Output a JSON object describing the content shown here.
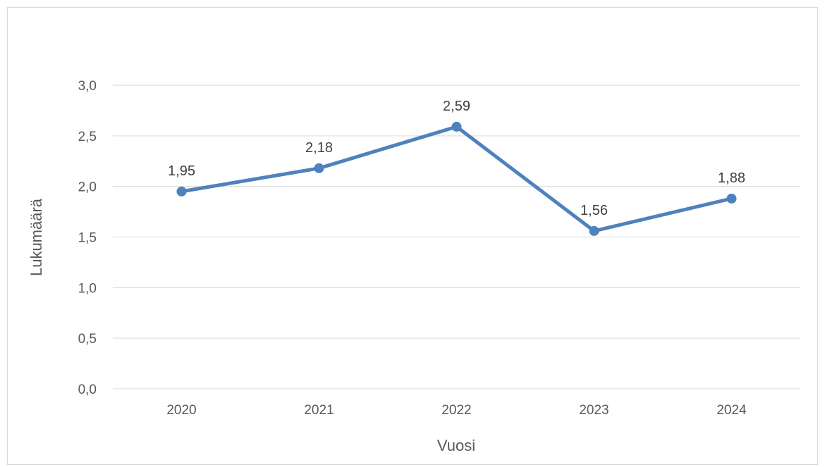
{
  "chart_data": {
    "type": "line",
    "categories": [
      "2020",
      "2021",
      "2022",
      "2023",
      "2024"
    ],
    "series": [
      {
        "values": [
          1.95,
          2.18,
          2.59,
          1.56,
          1.88
        ]
      }
    ],
    "data_labels": [
      "1,95",
      "2,18",
      "2,59",
      "1,56",
      "1,88"
    ],
    "y_ticks": [
      "0,0",
      "0,5",
      "1,0",
      "1,5",
      "2,0",
      "2,5",
      "3,0"
    ],
    "ylim": [
      0,
      3
    ],
    "xlabel": "Vuosi",
    "ylabel": "Lukumäärä",
    "grid": true,
    "line_color": "#4f81bd",
    "grid_color": "#d9d9d9"
  }
}
